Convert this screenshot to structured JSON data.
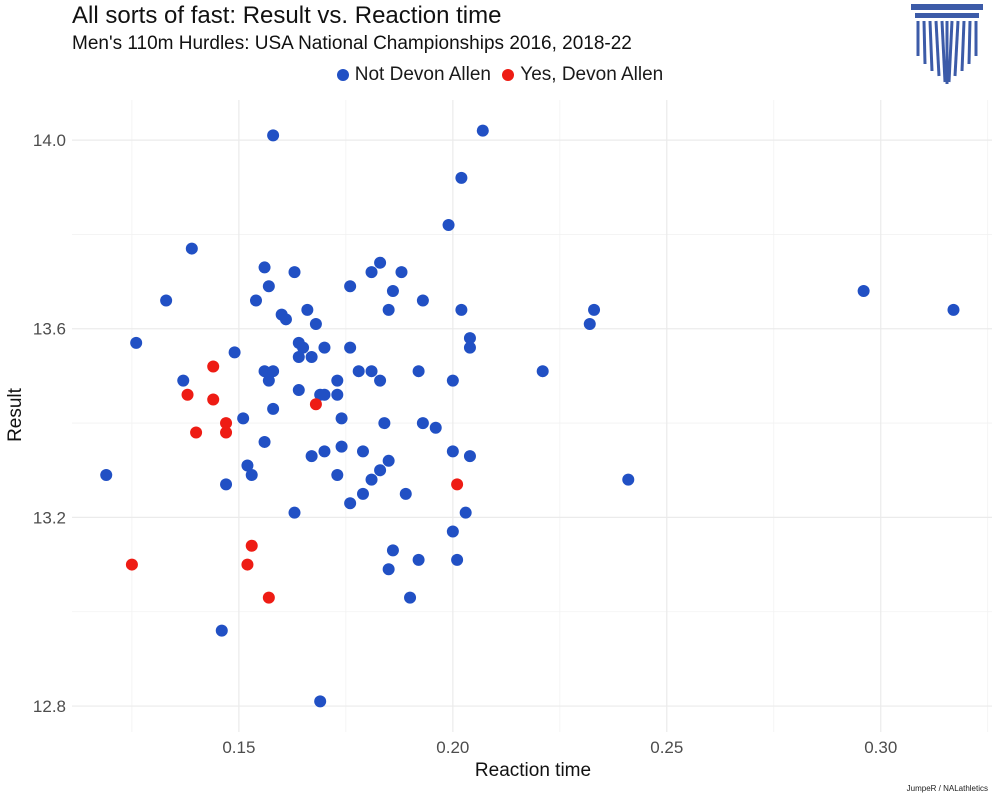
{
  "chart_data": {
    "type": "scatter",
    "title": "All sorts of fast: Result vs. Reaction time",
    "subtitle": "Men's 110m Hurdles: USA National Championships 2016, 2018-22",
    "xlabel": "Reaction time",
    "ylabel": "Result",
    "xlim": [
      0.111,
      0.326
    ],
    "ylim": [
      12.745,
      14.085
    ],
    "x_ticks": [
      0.15,
      0.2,
      0.25,
      0.3
    ],
    "x_tick_labels": [
      "0.15",
      "0.20",
      "0.25",
      "0.30"
    ],
    "y_ticks": [
      12.8,
      13.2,
      13.6,
      14.0
    ],
    "y_tick_labels": [
      "12.8",
      "13.2",
      "13.6",
      "14.0"
    ],
    "grid": true,
    "legend_position": "top",
    "caption": "JumpeR / NALathletics",
    "series": [
      {
        "name": "Not Devon Allen",
        "color": "#2150C4",
        "points": [
          [
            0.158,
            14.01
          ],
          [
            0.207,
            14.02
          ],
          [
            0.202,
            13.92
          ],
          [
            0.199,
            13.82
          ],
          [
            0.139,
            13.77
          ],
          [
            0.156,
            13.73
          ],
          [
            0.163,
            13.72
          ],
          [
            0.183,
            13.74
          ],
          [
            0.181,
            13.72
          ],
          [
            0.188,
            13.72
          ],
          [
            0.157,
            13.69
          ],
          [
            0.176,
            13.69
          ],
          [
            0.186,
            13.68
          ],
          [
            0.133,
            13.66
          ],
          [
            0.154,
            13.66
          ],
          [
            0.193,
            13.66
          ],
          [
            0.166,
            13.64
          ],
          [
            0.185,
            13.64
          ],
          [
            0.202,
            13.64
          ],
          [
            0.16,
            13.63
          ],
          [
            0.161,
            13.62
          ],
          [
            0.168,
            13.61
          ],
          [
            0.232,
            13.61
          ],
          [
            0.233,
            13.64
          ],
          [
            0.296,
            13.68
          ],
          [
            0.317,
            13.64
          ],
          [
            0.126,
            13.57
          ],
          [
            0.164,
            13.57
          ],
          [
            0.165,
            13.56
          ],
          [
            0.17,
            13.56
          ],
          [
            0.176,
            13.56
          ],
          [
            0.204,
            13.58
          ],
          [
            0.204,
            13.56
          ],
          [
            0.149,
            13.55
          ],
          [
            0.164,
            13.54
          ],
          [
            0.167,
            13.54
          ],
          [
            0.156,
            13.51
          ],
          [
            0.158,
            13.51
          ],
          [
            0.178,
            13.51
          ],
          [
            0.181,
            13.51
          ],
          [
            0.192,
            13.51
          ],
          [
            0.221,
            13.51
          ],
          [
            0.137,
            13.49
          ],
          [
            0.157,
            13.49
          ],
          [
            0.173,
            13.49
          ],
          [
            0.183,
            13.49
          ],
          [
            0.2,
            13.49
          ],
          [
            0.164,
            13.47
          ],
          [
            0.169,
            13.46
          ],
          [
            0.17,
            13.46
          ],
          [
            0.173,
            13.46
          ],
          [
            0.158,
            13.43
          ],
          [
            0.151,
            13.41
          ],
          [
            0.174,
            13.41
          ],
          [
            0.184,
            13.4
          ],
          [
            0.193,
            13.4
          ],
          [
            0.196,
            13.39
          ],
          [
            0.156,
            13.36
          ],
          [
            0.174,
            13.35
          ],
          [
            0.179,
            13.34
          ],
          [
            0.17,
            13.34
          ],
          [
            0.2,
            13.34
          ],
          [
            0.167,
            13.33
          ],
          [
            0.204,
            13.33
          ],
          [
            0.185,
            13.32
          ],
          [
            0.152,
            13.31
          ],
          [
            0.183,
            13.3
          ],
          [
            0.119,
            13.29
          ],
          [
            0.153,
            13.29
          ],
          [
            0.173,
            13.29
          ],
          [
            0.181,
            13.28
          ],
          [
            0.241,
            13.28
          ],
          [
            0.147,
            13.27
          ],
          [
            0.179,
            13.25
          ],
          [
            0.189,
            13.25
          ],
          [
            0.176,
            13.23
          ],
          [
            0.163,
            13.21
          ],
          [
            0.203,
            13.21
          ],
          [
            0.2,
            13.17
          ],
          [
            0.186,
            13.13
          ],
          [
            0.192,
            13.11
          ],
          [
            0.201,
            13.11
          ],
          [
            0.185,
            13.09
          ],
          [
            0.19,
            13.03
          ],
          [
            0.146,
            12.96
          ],
          [
            0.169,
            12.81
          ]
        ]
      },
      {
        "name": "Yes, Devon Allen",
        "color": "#EE1C14",
        "points": [
          [
            0.144,
            13.52
          ],
          [
            0.138,
            13.46
          ],
          [
            0.144,
            13.45
          ],
          [
            0.168,
            13.44
          ],
          [
            0.147,
            13.4
          ],
          [
            0.14,
            13.38
          ],
          [
            0.147,
            13.38
          ],
          [
            0.201,
            13.27
          ],
          [
            0.153,
            13.14
          ],
          [
            0.125,
            13.1
          ],
          [
            0.152,
            13.1
          ],
          [
            0.157,
            13.03
          ]
        ]
      }
    ]
  }
}
